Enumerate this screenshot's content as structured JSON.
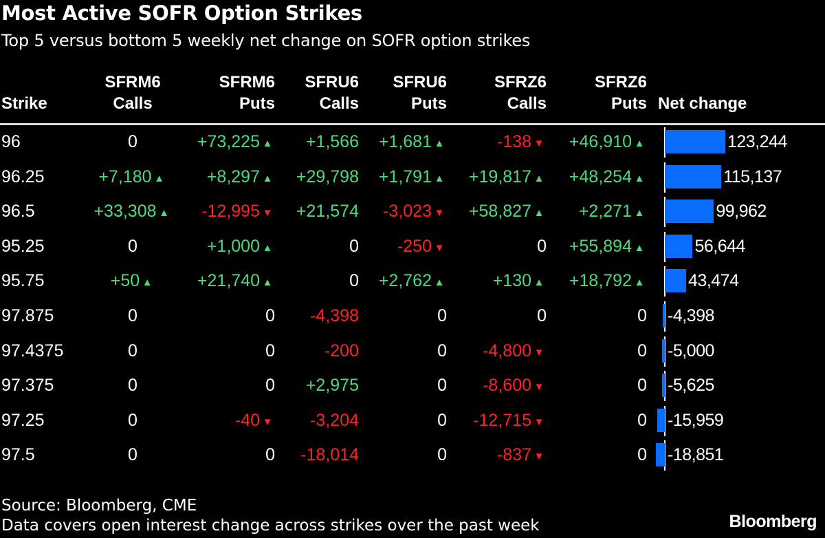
{
  "chart_data": {
    "type": "table",
    "title": "Most Active SOFR Option Strikes",
    "subtitle": "Top 5 versus bottom 5 weekly net change on SOFR option strikes",
    "columns": [
      {
        "line1": "",
        "line2": "Strike"
      },
      {
        "line1": "SFRM6",
        "line2": "Calls",
        "arrows": true
      },
      {
        "line1": "SFRM6",
        "line2": "Puts",
        "arrows": true
      },
      {
        "line1": "SFRU6",
        "line2": "Calls",
        "arrows": false
      },
      {
        "line1": "SFRU6",
        "line2": "Puts",
        "arrows": true
      },
      {
        "line1": "SFRZ6",
        "line2": "Calls",
        "arrows": true
      },
      {
        "line1": "SFRZ6",
        "line2": "Puts",
        "arrows": true
      },
      {
        "line1": "",
        "line2": "Net change"
      }
    ],
    "rows": [
      {
        "strike": "96",
        "cells": [
          "0",
          "+73,225",
          "+1,566",
          "+1,681",
          "-138",
          "+46,910"
        ],
        "net": 123244,
        "net_label": "123,244"
      },
      {
        "strike": "96.25",
        "cells": [
          "+7,180",
          "+8,297",
          "+29,798",
          "+1,791",
          "+19,817",
          "+48,254"
        ],
        "net": 115137,
        "net_label": "115,137"
      },
      {
        "strike": "96.5",
        "cells": [
          "+33,308",
          "-12,995",
          "+21,574",
          "-3,023",
          "+58,827",
          "+2,271"
        ],
        "net": 99962,
        "net_label": "99,962"
      },
      {
        "strike": "95.25",
        "cells": [
          "0",
          "+1,000",
          "0",
          "-250",
          "0",
          "+55,894"
        ],
        "net": 56644,
        "net_label": "56,644"
      },
      {
        "strike": "95.75",
        "cells": [
          "+50",
          "+21,740",
          "0",
          "+2,762",
          "+130",
          "+18,792"
        ],
        "net": 43474,
        "net_label": "43,474"
      },
      {
        "strike": "97.875",
        "cells": [
          "0",
          "0",
          "-4,398",
          "0",
          "0",
          "0"
        ],
        "net": -4398,
        "net_label": "-4,398"
      },
      {
        "strike": "97.4375",
        "cells": [
          "0",
          "0",
          "-200",
          "0",
          "-4,800",
          "0"
        ],
        "net": -5000,
        "net_label": "-5,000"
      },
      {
        "strike": "97.375",
        "cells": [
          "0",
          "0",
          "+2,975",
          "0",
          "-8,600",
          "0"
        ],
        "net": -5625,
        "net_label": "-5,625"
      },
      {
        "strike": "97.25",
        "cells": [
          "0",
          "-40",
          "-3,204",
          "0",
          "-12,715",
          "0"
        ],
        "net": -15959,
        "net_label": "-15,959"
      },
      {
        "strike": "97.5",
        "cells": [
          "0",
          "0",
          "-18,014",
          "0",
          "-837",
          "0"
        ],
        "net": -18851,
        "net_label": "-18,851"
      }
    ],
    "colors": {
      "positive": "#4ddb7a",
      "negative": "#ff2222",
      "bar": "#0a6cff",
      "background": "#000000"
    }
  },
  "footer": {
    "source": "Source: Bloomberg, CME",
    "note": "Data covers open interest change across strikes over the past week",
    "logo": "Bloomberg"
  }
}
